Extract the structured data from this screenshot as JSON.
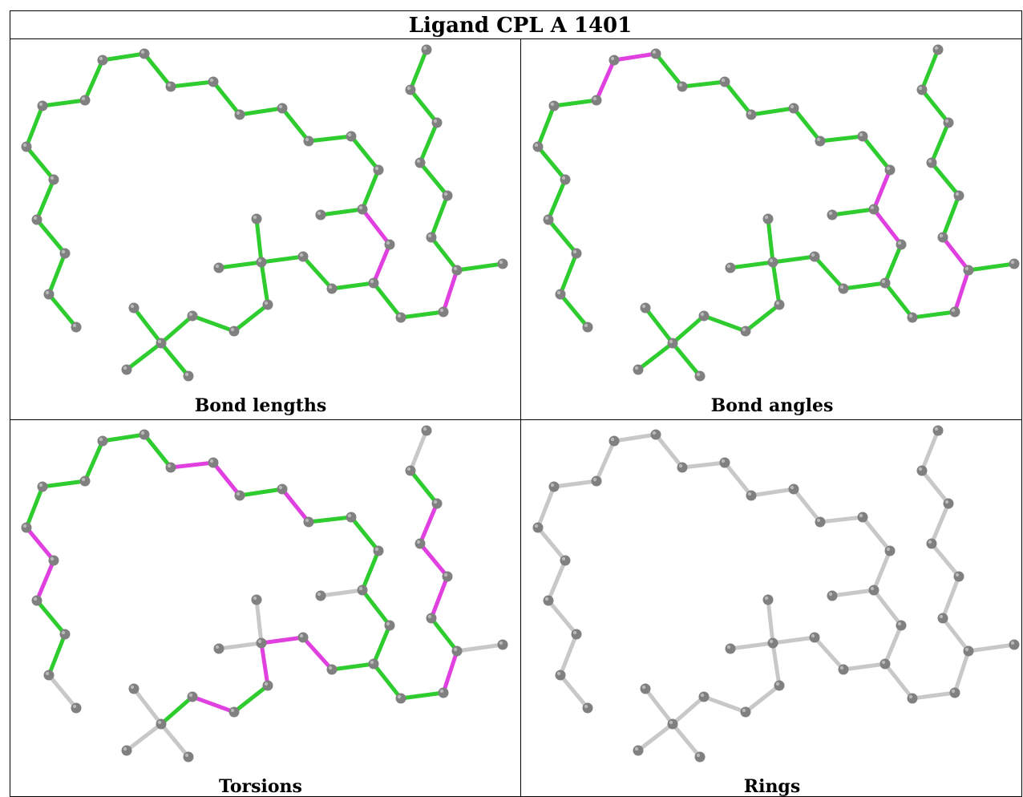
{
  "title": "Ligand CPL A 1401",
  "colors": {
    "ok": "#2ecc2e",
    "outlier": "#e040e0",
    "neutral": "#c8c8c8",
    "atom": "#808080",
    "atom_highlight": "#b8b8b8",
    "border": "#000000"
  },
  "panels": [
    {
      "name": "bond-lengths",
      "label": "Bond lengths"
    },
    {
      "name": "bond-angles",
      "label": "Bond angles"
    },
    {
      "name": "torsions",
      "label": "Torsions"
    },
    {
      "name": "rings",
      "label": "Rings"
    }
  ]
}
